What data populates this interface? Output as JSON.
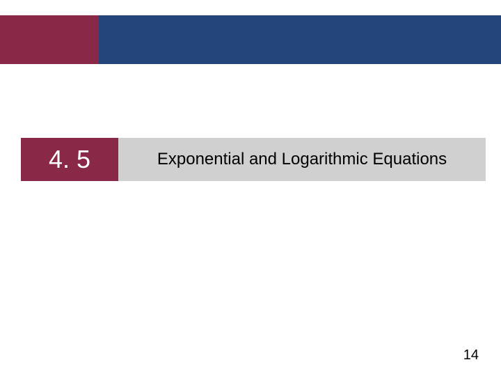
{
  "colors": {
    "maroon": "#8a2848",
    "navy": "#23457a",
    "lightgray": "#d0d0d0",
    "white": "#ffffff",
    "black": "#000000"
  },
  "section": {
    "number": "4. 5",
    "title": "Exponential and Logarithmic Equations"
  },
  "page_number": "14"
}
